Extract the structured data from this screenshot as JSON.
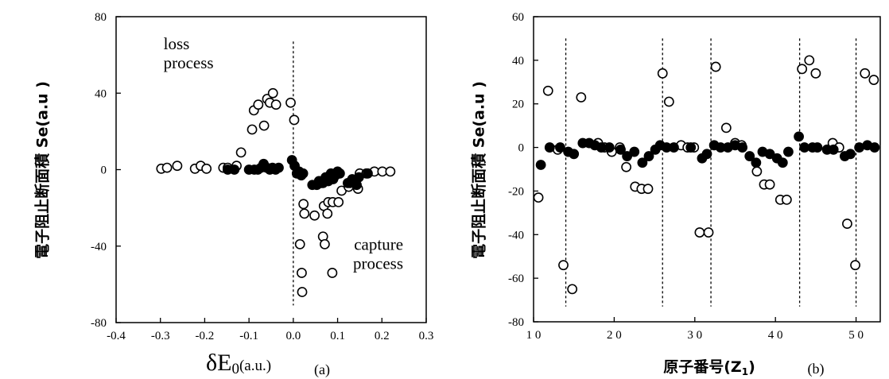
{
  "chart_data": [
    {
      "type": "scatter",
      "panel_tag": "(a)",
      "ylabel": "電子阻止断面積 Se(a.u )",
      "xlabel_symbol": "δE",
      "xlabel_sub": "0",
      "xlabel_unit": "(a.u.)",
      "xlim": [
        -0.4,
        0.3
      ],
      "ylim": [
        -80,
        80
      ],
      "xticks": [
        -0.4,
        -0.3,
        -0.2,
        -0.1,
        0.0,
        0.1,
        0.2,
        0.3
      ],
      "xtick_labels": [
        "-0.4",
        "-0.3",
        "-0.2",
        "-0.1",
        "0.0",
        "0.1",
        "0.2",
        "0.3"
      ],
      "yticks": [
        -80,
        -40,
        0,
        40,
        80
      ],
      "ytick_labels": [
        "-80",
        "-40",
        "0",
        "40",
        "80"
      ],
      "grid": false,
      "vline_x": 0.0,
      "annotations": [
        {
          "lines": [
            "loss",
            "process"
          ],
          "x": -0.293,
          "y": 63,
          "anchor": "start"
        },
        {
          "lines": [
            "capture",
            "process"
          ],
          "x": 0.248,
          "y": -42,
          "anchor": "end"
        }
      ],
      "series": [
        {
          "marker": "open-circle",
          "points": [
            [
              -0.298,
              0.5
            ],
            [
              -0.285,
              1
            ],
            [
              -0.262,
              2
            ],
            [
              -0.222,
              0.5
            ],
            [
              -0.209,
              2
            ],
            [
              -0.196,
              0.5
            ],
            [
              -0.158,
              1
            ],
            [
              -0.148,
              1
            ],
            [
              -0.128,
              2
            ],
            [
              -0.118,
              9
            ],
            [
              -0.093,
              21
            ],
            [
              -0.089,
              31
            ],
            [
              -0.079,
              34
            ],
            [
              -0.066,
              23
            ],
            [
              -0.059,
              37
            ],
            [
              -0.053,
              35
            ],
            [
              -0.046,
              40
            ],
            [
              -0.039,
              34
            ],
            [
              -0.006,
              35
            ],
            [
              0.002,
              26
            ],
            [
              0.015,
              -39
            ],
            [
              0.019,
              -54
            ],
            [
              0.02,
              -64
            ],
            [
              0.023,
              -18
            ],
            [
              0.025,
              -23
            ],
            [
              0.048,
              -24
            ],
            [
              0.067,
              -35
            ],
            [
              0.069,
              -19
            ],
            [
              0.071,
              -39
            ],
            [
              0.077,
              -23
            ],
            [
              0.079,
              -17
            ],
            [
              0.088,
              -54
            ],
            [
              0.089,
              -17
            ],
            [
              0.102,
              -17
            ],
            [
              0.109,
              -11
            ],
            [
              0.125,
              -9
            ],
            [
              0.135,
              -6
            ],
            [
              0.146,
              -10
            ],
            [
              0.15,
              -2
            ],
            [
              0.165,
              -2
            ],
            [
              0.183,
              -1
            ],
            [
              0.201,
              -1
            ],
            [
              0.219,
              -1
            ]
          ]
        },
        {
          "marker": "filled-circle",
          "points": [
            [
              -0.148,
              0
            ],
            [
              -0.133,
              0
            ],
            [
              -0.1,
              0
            ],
            [
              -0.088,
              0
            ],
            [
              -0.08,
              0
            ],
            [
              -0.073,
              1
            ],
            [
              -0.067,
              3
            ],
            [
              -0.06,
              1
            ],
            [
              -0.053,
              0
            ],
            [
              -0.047,
              1
            ],
            [
              -0.04,
              0
            ],
            [
              -0.033,
              1
            ],
            [
              -0.003,
              5
            ],
            [
              0.003,
              2
            ],
            [
              0.008,
              -2
            ],
            [
              0.013,
              -1
            ],
            [
              0.018,
              -3
            ],
            [
              0.022,
              -2
            ],
            [
              0.043,
              -8
            ],
            [
              0.053,
              -8
            ],
            [
              0.058,
              -6
            ],
            [
              0.063,
              -7
            ],
            [
              0.067,
              -7
            ],
            [
              0.073,
              -4
            ],
            [
              0.079,
              -6
            ],
            [
              0.085,
              -2
            ],
            [
              0.09,
              -5
            ],
            [
              0.095,
              -3
            ],
            [
              0.1,
              -1
            ],
            [
              0.105,
              -2
            ],
            [
              0.123,
              -7
            ],
            [
              0.128,
              -7
            ],
            [
              0.133,
              -5
            ],
            [
              0.139,
              -7
            ],
            [
              0.143,
              -8
            ],
            [
              0.148,
              -4
            ],
            [
              0.168,
              -2
            ]
          ]
        }
      ]
    },
    {
      "type": "scatter",
      "panel_tag": "(b)",
      "ylabel": "電子阻止断面積 Se(a.u )",
      "xlabel_main": "原子番号(Z",
      "xlabel_sub": "1",
      "xlabel_close": ")",
      "xlim": [
        10,
        53
      ],
      "ylim": [
        -80,
        60
      ],
      "xticks": [
        10,
        20,
        30,
        40,
        50
      ],
      "xtick_labels": [
        "1 0",
        "2 0",
        "3 0",
        "4 0",
        "5 0"
      ],
      "yticks": [
        -80,
        -60,
        -40,
        -20,
        0,
        20,
        40,
        60
      ],
      "ytick_labels": [
        "-80",
        "-60",
        "-40",
        "-20",
        "0",
        "20",
        "40",
        "60"
      ],
      "grid": false,
      "vlines_x": [
        14,
        26,
        32,
        43,
        50
      ],
      "series": [
        {
          "marker": "open-circle",
          "points": [
            [
              10.6,
              -23
            ],
            [
              11.8,
              26
            ],
            [
              13.0,
              -1
            ],
            [
              13.7,
              -54
            ],
            [
              14.8,
              -65
            ],
            [
              15.9,
              23
            ],
            [
              18.0,
              2
            ],
            [
              18.8,
              0
            ],
            [
              19.7,
              -2
            ],
            [
              20.7,
              0
            ],
            [
              21.5,
              -9
            ],
            [
              22.6,
              -18
            ],
            [
              23.4,
              -19
            ],
            [
              24.2,
              -19
            ],
            [
              26.0,
              34
            ],
            [
              26.8,
              21
            ],
            [
              28.3,
              1
            ],
            [
              29.1,
              0
            ],
            [
              29.9,
              0
            ],
            [
              30.6,
              -39
            ],
            [
              31.7,
              -39
            ],
            [
              32.6,
              37
            ],
            [
              33.9,
              9
            ],
            [
              35.0,
              2
            ],
            [
              35.8,
              1
            ],
            [
              37.7,
              -11
            ],
            [
              38.6,
              -17
            ],
            [
              39.3,
              -17
            ],
            [
              40.6,
              -24
            ],
            [
              41.4,
              -24
            ],
            [
              43.3,
              36
            ],
            [
              44.2,
              40
            ],
            [
              45.0,
              34
            ],
            [
              47.1,
              2
            ],
            [
              47.9,
              0
            ],
            [
              48.9,
              -35
            ],
            [
              49.9,
              -54
            ],
            [
              51.1,
              34
            ],
            [
              52.2,
              31
            ]
          ]
        },
        {
          "marker": "filled-circle",
          "points": [
            [
              10.9,
              -8
            ],
            [
              12.0,
              0
            ],
            [
              13.3,
              0
            ],
            [
              14.3,
              -2
            ],
            [
              15.0,
              -3
            ],
            [
              16.1,
              2
            ],
            [
              16.9,
              2
            ],
            [
              17.6,
              1
            ],
            [
              18.4,
              0
            ],
            [
              19.4,
              0
            ],
            [
              20.8,
              -1
            ],
            [
              21.6,
              -4
            ],
            [
              22.5,
              -2
            ],
            [
              23.5,
              -7
            ],
            [
              24.3,
              -4
            ],
            [
              25.1,
              -1
            ],
            [
              25.7,
              1
            ],
            [
              26.5,
              0
            ],
            [
              27.4,
              0
            ],
            [
              29.5,
              0
            ],
            [
              30.9,
              -5
            ],
            [
              31.5,
              -3
            ],
            [
              32.4,
              1
            ],
            [
              33.2,
              0
            ],
            [
              34.1,
              0
            ],
            [
              35.0,
              1
            ],
            [
              35.9,
              0
            ],
            [
              36.8,
              -4
            ],
            [
              37.6,
              -7
            ],
            [
              38.4,
              -2
            ],
            [
              39.3,
              -3
            ],
            [
              40.2,
              -5
            ],
            [
              40.9,
              -7
            ],
            [
              41.6,
              -2
            ],
            [
              42.9,
              5
            ],
            [
              43.6,
              0
            ],
            [
              44.6,
              0
            ],
            [
              45.2,
              0
            ],
            [
              46.4,
              -1
            ],
            [
              47.2,
              -1
            ],
            [
              48.6,
              -4
            ],
            [
              49.3,
              -3
            ],
            [
              50.4,
              0
            ],
            [
              51.4,
              1
            ],
            [
              52.3,
              0
            ]
          ]
        }
      ]
    }
  ]
}
